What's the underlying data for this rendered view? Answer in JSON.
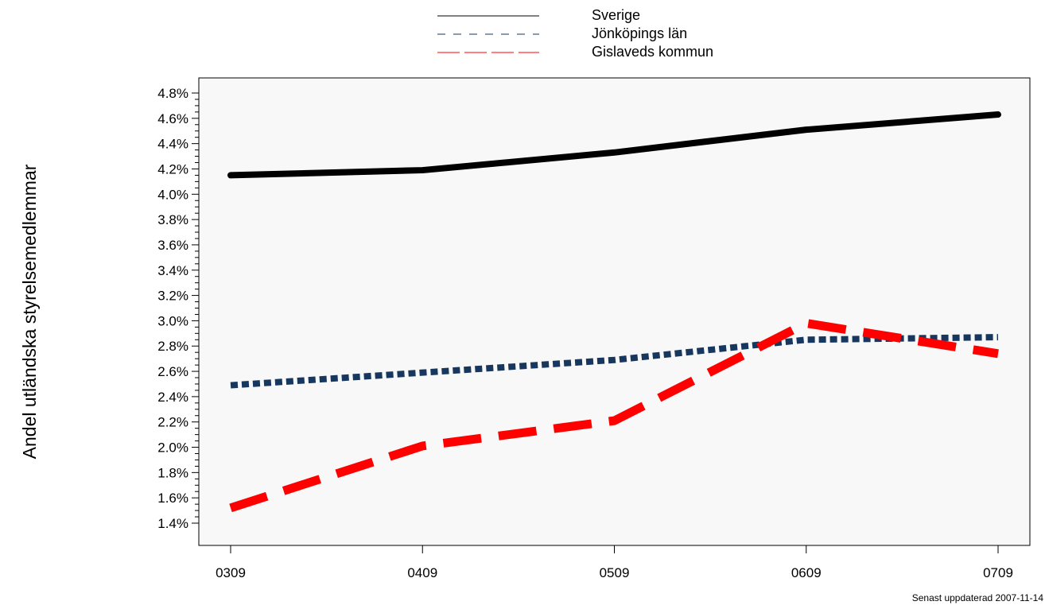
{
  "chart_data": {
    "type": "line",
    "title": "",
    "xlabel": "",
    "ylabel": "Andel utländska styrelsemedlemmar",
    "categories": [
      "0309",
      "0409",
      "0509",
      "0609",
      "0709"
    ],
    "ylim": [
      1.3,
      4.9
    ],
    "y_ticks": [
      1.4,
      1.6,
      1.8,
      2.0,
      2.2,
      2.4,
      2.6,
      2.8,
      3.0,
      3.2,
      3.4,
      3.6,
      3.8,
      4.0,
      4.2,
      4.4,
      4.6,
      4.8
    ],
    "y_tick_format": "percent_1dp",
    "grid": false,
    "legend_position": "top-center",
    "series": [
      {
        "name": "Sverige",
        "values": [
          4.15,
          4.19,
          4.33,
          4.51,
          4.63
        ],
        "color": "#000000",
        "style": "solid"
      },
      {
        "name": "Jönköpings län",
        "values": [
          2.49,
          2.59,
          2.69,
          2.85,
          2.87
        ],
        "color": "#17375e",
        "style": "dotted"
      },
      {
        "name": "Gislaveds kommun",
        "values": [
          1.52,
          2.01,
          2.21,
          2.98,
          2.74
        ],
        "color": "#ff0000",
        "style": "dashed"
      }
    ],
    "plot_background": "#f8f8f8"
  },
  "footnote": "Senast uppdaterad 2007-11-14"
}
